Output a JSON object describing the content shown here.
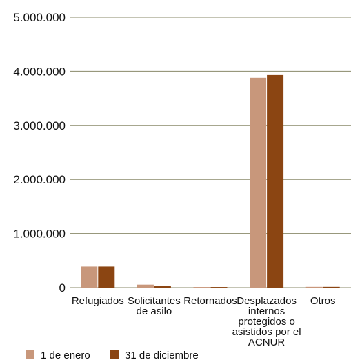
{
  "chart_data": {
    "type": "bar",
    "categories": [
      [
        "Refugiados"
      ],
      [
        "Solicitantes",
        "de asilo"
      ],
      [
        "Retornados"
      ],
      [
        "Desplazados",
        "internos",
        "protegidos o",
        "asistidos por el",
        "ACNUR"
      ],
      [
        "Otros"
      ]
    ],
    "series": [
      {
        "name": "1 de enero",
        "color": "#c8977b",
        "values": [
          390000,
          55000,
          12000,
          3880000,
          15000
        ]
      },
      {
        "name": "31 de diciembre",
        "color": "#8b4512",
        "values": [
          390000,
          30000,
          12000,
          3930000,
          15000
        ]
      }
    ],
    "yticks": [
      "0",
      "1.000.000",
      "2.000.000",
      "3.000.000",
      "4.000.000",
      "5.000.000"
    ],
    "ylim": [
      0,
      5000000
    ],
    "grid": true,
    "gridColor": "#8a8a6a",
    "legend_position": "bottom-left"
  }
}
